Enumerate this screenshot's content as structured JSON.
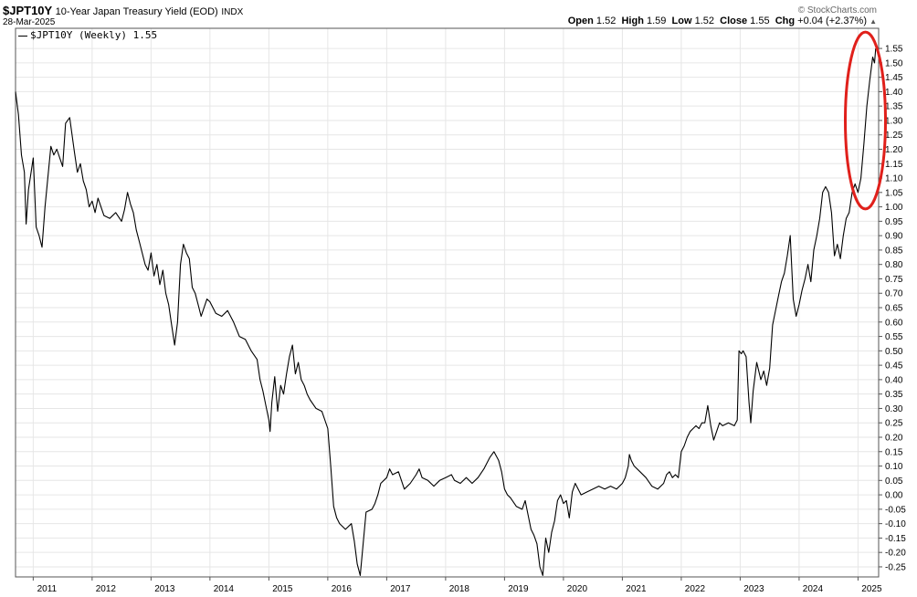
{
  "header": {
    "symbol": "$JPT10Y",
    "description": "10-Year Japan Treasury Yield (EOD)",
    "exchange": "INDX",
    "date": "28-Mar-2025",
    "brand": "© StockCharts.com",
    "open_label": "Open",
    "open": "1.52",
    "high_label": "High",
    "high": "1.59",
    "low_label": "Low",
    "low": "1.52",
    "close_label": "Close",
    "close": "1.55",
    "chg_label": "Chg",
    "chg": "+0.04 (+2.37%)"
  },
  "legend": {
    "label": "$JPT10Y (Weekly) 1.55"
  },
  "annotation": {
    "shape": "ellipse",
    "color": "#e0201b"
  },
  "chart_data": {
    "type": "line",
    "series": [
      {
        "name": "$JPT10Y (Weekly)",
        "color": "#000000",
        "points": [
          [
            2010.7,
            1.4
          ],
          [
            2010.75,
            1.32
          ],
          [
            2010.8,
            1.18
          ],
          [
            2010.85,
            1.12
          ],
          [
            2010.88,
            0.94
          ],
          [
            2010.92,
            1.06
          ],
          [
            2011.0,
            1.17
          ],
          [
            2011.05,
            0.93
          ],
          [
            2011.1,
            0.9
          ],
          [
            2011.15,
            0.86
          ],
          [
            2011.2,
            1.0
          ],
          [
            2011.3,
            1.21
          ],
          [
            2011.35,
            1.18
          ],
          [
            2011.4,
            1.2
          ],
          [
            2011.5,
            1.14
          ],
          [
            2011.55,
            1.29
          ],
          [
            2011.62,
            1.31
          ],
          [
            2011.7,
            1.19
          ],
          [
            2011.75,
            1.12
          ],
          [
            2011.8,
            1.15
          ],
          [
            2011.85,
            1.09
          ],
          [
            2011.9,
            1.06
          ],
          [
            2011.95,
            1.0
          ],
          [
            2012.0,
            1.02
          ],
          [
            2012.05,
            0.98
          ],
          [
            2012.1,
            1.03
          ],
          [
            2012.2,
            0.97
          ],
          [
            2012.3,
            0.96
          ],
          [
            2012.4,
            0.98
          ],
          [
            2012.5,
            0.95
          ],
          [
            2012.55,
            0.99
          ],
          [
            2012.6,
            1.05
          ],
          [
            2012.65,
            1.01
          ],
          [
            2012.7,
            0.98
          ],
          [
            2012.75,
            0.92
          ],
          [
            2012.8,
            0.88
          ],
          [
            2012.85,
            0.84
          ],
          [
            2012.9,
            0.8
          ],
          [
            2012.95,
            0.78
          ],
          [
            2013.0,
            0.84
          ],
          [
            2013.05,
            0.76
          ],
          [
            2013.1,
            0.8
          ],
          [
            2013.15,
            0.73
          ],
          [
            2013.2,
            0.78
          ],
          [
            2013.25,
            0.7
          ],
          [
            2013.3,
            0.66
          ],
          [
            2013.35,
            0.59
          ],
          [
            2013.4,
            0.52
          ],
          [
            2013.45,
            0.6
          ],
          [
            2013.5,
            0.8
          ],
          [
            2013.55,
            0.87
          ],
          [
            2013.6,
            0.84
          ],
          [
            2013.65,
            0.82
          ],
          [
            2013.7,
            0.72
          ],
          [
            2013.75,
            0.7
          ],
          [
            2013.8,
            0.66
          ],
          [
            2013.85,
            0.62
          ],
          [
            2013.95,
            0.68
          ],
          [
            2014.0,
            0.67
          ],
          [
            2014.1,
            0.63
          ],
          [
            2014.2,
            0.62
          ],
          [
            2014.3,
            0.64
          ],
          [
            2014.4,
            0.6
          ],
          [
            2014.5,
            0.55
          ],
          [
            2014.6,
            0.54
          ],
          [
            2014.7,
            0.5
          ],
          [
            2014.8,
            0.47
          ],
          [
            2014.85,
            0.4
          ],
          [
            2014.9,
            0.36
          ],
          [
            2014.95,
            0.31
          ],
          [
            2015.0,
            0.26
          ],
          [
            2015.02,
            0.22
          ],
          [
            2015.05,
            0.32
          ],
          [
            2015.1,
            0.41
          ],
          [
            2015.15,
            0.29
          ],
          [
            2015.2,
            0.38
          ],
          [
            2015.25,
            0.35
          ],
          [
            2015.3,
            0.42
          ],
          [
            2015.35,
            0.48
          ],
          [
            2015.4,
            0.52
          ],
          [
            2015.45,
            0.42
          ],
          [
            2015.5,
            0.46
          ],
          [
            2015.55,
            0.4
          ],
          [
            2015.6,
            0.38
          ],
          [
            2015.65,
            0.35
          ],
          [
            2015.7,
            0.33
          ],
          [
            2015.8,
            0.3
          ],
          [
            2015.9,
            0.29
          ],
          [
            2016.0,
            0.23
          ],
          [
            2016.05,
            0.1
          ],
          [
            2016.1,
            -0.04
          ],
          [
            2016.15,
            -0.08
          ],
          [
            2016.2,
            -0.1
          ],
          [
            2016.3,
            -0.12
          ],
          [
            2016.4,
            -0.1
          ],
          [
            2016.45,
            -0.16
          ],
          [
            2016.5,
            -0.24
          ],
          [
            2016.55,
            -0.28
          ],
          [
            2016.6,
            -0.17
          ],
          [
            2016.65,
            -0.06
          ],
          [
            2016.75,
            -0.05
          ],
          [
            2016.8,
            -0.03
          ],
          [
            2016.85,
            0.0
          ],
          [
            2016.9,
            0.04
          ],
          [
            2017.0,
            0.06
          ],
          [
            2017.05,
            0.09
          ],
          [
            2017.1,
            0.07
          ],
          [
            2017.2,
            0.08
          ],
          [
            2017.25,
            0.05
          ],
          [
            2017.3,
            0.02
          ],
          [
            2017.4,
            0.04
          ],
          [
            2017.5,
            0.07
          ],
          [
            2017.55,
            0.09
          ],
          [
            2017.6,
            0.06
          ],
          [
            2017.7,
            0.05
          ],
          [
            2017.8,
            0.03
          ],
          [
            2017.9,
            0.05
          ],
          [
            2018.0,
            0.06
          ],
          [
            2018.1,
            0.07
          ],
          [
            2018.15,
            0.05
          ],
          [
            2018.25,
            0.04
          ],
          [
            2018.35,
            0.06
          ],
          [
            2018.45,
            0.04
          ],
          [
            2018.55,
            0.06
          ],
          [
            2018.65,
            0.09
          ],
          [
            2018.75,
            0.13
          ],
          [
            2018.82,
            0.15
          ],
          [
            2018.9,
            0.12
          ],
          [
            2018.95,
            0.08
          ],
          [
            2019.0,
            0.02
          ],
          [
            2019.05,
            0.0
          ],
          [
            2019.1,
            -0.01
          ],
          [
            2019.2,
            -0.04
          ],
          [
            2019.3,
            -0.05
          ],
          [
            2019.35,
            -0.02
          ],
          [
            2019.4,
            -0.07
          ],
          [
            2019.45,
            -0.12
          ],
          [
            2019.5,
            -0.14
          ],
          [
            2019.55,
            -0.17
          ],
          [
            2019.6,
            -0.25
          ],
          [
            2019.65,
            -0.28
          ],
          [
            2019.7,
            -0.15
          ],
          [
            2019.75,
            -0.2
          ],
          [
            2019.8,
            -0.13
          ],
          [
            2019.85,
            -0.09
          ],
          [
            2019.9,
            -0.02
          ],
          [
            2019.95,
            0.0
          ],
          [
            2020.0,
            -0.03
          ],
          [
            2020.05,
            -0.02
          ],
          [
            2020.1,
            -0.08
          ],
          [
            2020.15,
            0.01
          ],
          [
            2020.2,
            0.04
          ],
          [
            2020.25,
            0.02
          ],
          [
            2020.3,
            0.0
          ],
          [
            2020.4,
            0.01
          ],
          [
            2020.5,
            0.02
          ],
          [
            2020.6,
            0.03
          ],
          [
            2020.7,
            0.02
          ],
          [
            2020.8,
            0.03
          ],
          [
            2020.9,
            0.02
          ],
          [
            2021.0,
            0.04
          ],
          [
            2021.05,
            0.06
          ],
          [
            2021.1,
            0.1
          ],
          [
            2021.12,
            0.14
          ],
          [
            2021.15,
            0.12
          ],
          [
            2021.2,
            0.1
          ],
          [
            2021.3,
            0.08
          ],
          [
            2021.4,
            0.06
          ],
          [
            2021.5,
            0.03
          ],
          [
            2021.6,
            0.02
          ],
          [
            2021.7,
            0.04
          ],
          [
            2021.75,
            0.07
          ],
          [
            2021.8,
            0.08
          ],
          [
            2021.85,
            0.06
          ],
          [
            2021.9,
            0.07
          ],
          [
            2021.95,
            0.06
          ],
          [
            2022.0,
            0.15
          ],
          [
            2022.05,
            0.17
          ],
          [
            2022.1,
            0.2
          ],
          [
            2022.15,
            0.22
          ],
          [
            2022.2,
            0.23
          ],
          [
            2022.25,
            0.24
          ],
          [
            2022.3,
            0.23
          ],
          [
            2022.35,
            0.25
          ],
          [
            2022.4,
            0.25
          ],
          [
            2022.45,
            0.31
          ],
          [
            2022.5,
            0.24
          ],
          [
            2022.55,
            0.19
          ],
          [
            2022.6,
            0.22
          ],
          [
            2022.65,
            0.25
          ],
          [
            2022.7,
            0.24
          ],
          [
            2022.8,
            0.25
          ],
          [
            2022.9,
            0.24
          ],
          [
            2022.95,
            0.26
          ],
          [
            2022.98,
            0.5
          ],
          [
            2023.02,
            0.49
          ],
          [
            2023.05,
            0.5
          ],
          [
            2023.1,
            0.48
          ],
          [
            2023.15,
            0.32
          ],
          [
            2023.18,
            0.25
          ],
          [
            2023.22,
            0.36
          ],
          [
            2023.28,
            0.46
          ],
          [
            2023.35,
            0.4
          ],
          [
            2023.4,
            0.43
          ],
          [
            2023.45,
            0.38
          ],
          [
            2023.5,
            0.44
          ],
          [
            2023.55,
            0.59
          ],
          [
            2023.6,
            0.64
          ],
          [
            2023.65,
            0.69
          ],
          [
            2023.7,
            0.74
          ],
          [
            2023.75,
            0.77
          ],
          [
            2023.8,
            0.83
          ],
          [
            2023.85,
            0.9
          ],
          [
            2023.9,
            0.68
          ],
          [
            2023.95,
            0.62
          ],
          [
            2024.0,
            0.66
          ],
          [
            2024.05,
            0.71
          ],
          [
            2024.1,
            0.75
          ],
          [
            2024.15,
            0.8
          ],
          [
            2024.2,
            0.74
          ],
          [
            2024.25,
            0.85
          ],
          [
            2024.3,
            0.9
          ],
          [
            2024.35,
            0.96
          ],
          [
            2024.4,
            1.05
          ],
          [
            2024.45,
            1.07
          ],
          [
            2024.5,
            1.05
          ],
          [
            2024.55,
            0.98
          ],
          [
            2024.6,
            0.83
          ],
          [
            2024.65,
            0.87
          ],
          [
            2024.7,
            0.82
          ],
          [
            2024.75,
            0.9
          ],
          [
            2024.8,
            0.96
          ],
          [
            2024.85,
            0.98
          ],
          [
            2024.9,
            1.05
          ],
          [
            2024.95,
            1.08
          ],
          [
            2025.0,
            1.05
          ],
          [
            2025.05,
            1.1
          ],
          [
            2025.1,
            1.22
          ],
          [
            2025.15,
            1.35
          ],
          [
            2025.2,
            1.44
          ],
          [
            2025.25,
            1.52
          ],
          [
            2025.28,
            1.5
          ],
          [
            2025.3,
            1.55
          ]
        ]
      }
    ],
    "x_range": [
      2010.7,
      2025.35
    ],
    "x_ticks": [
      2011,
      2012,
      2013,
      2014,
      2015,
      2016,
      2017,
      2018,
      2019,
      2020,
      2021,
      2022,
      2023,
      2024,
      2025
    ],
    "y_range": [
      -0.285,
      1.62
    ],
    "y_ticks": [
      1.55,
      1.5,
      1.45,
      1.4,
      1.35,
      1.3,
      1.25,
      1.2,
      1.15,
      1.1,
      1.05,
      1.0,
      0.95,
      0.9,
      0.85,
      0.8,
      0.75,
      0.7,
      0.65,
      0.6,
      0.55,
      0.5,
      0.45,
      0.4,
      0.35,
      0.3,
      0.25,
      0.2,
      0.15,
      0.1,
      0.05,
      0.0,
      -0.05,
      -0.1,
      -0.15,
      -0.2,
      -0.25
    ],
    "y_axis_side": "right",
    "grid": true,
    "legend_position": "top-left"
  }
}
